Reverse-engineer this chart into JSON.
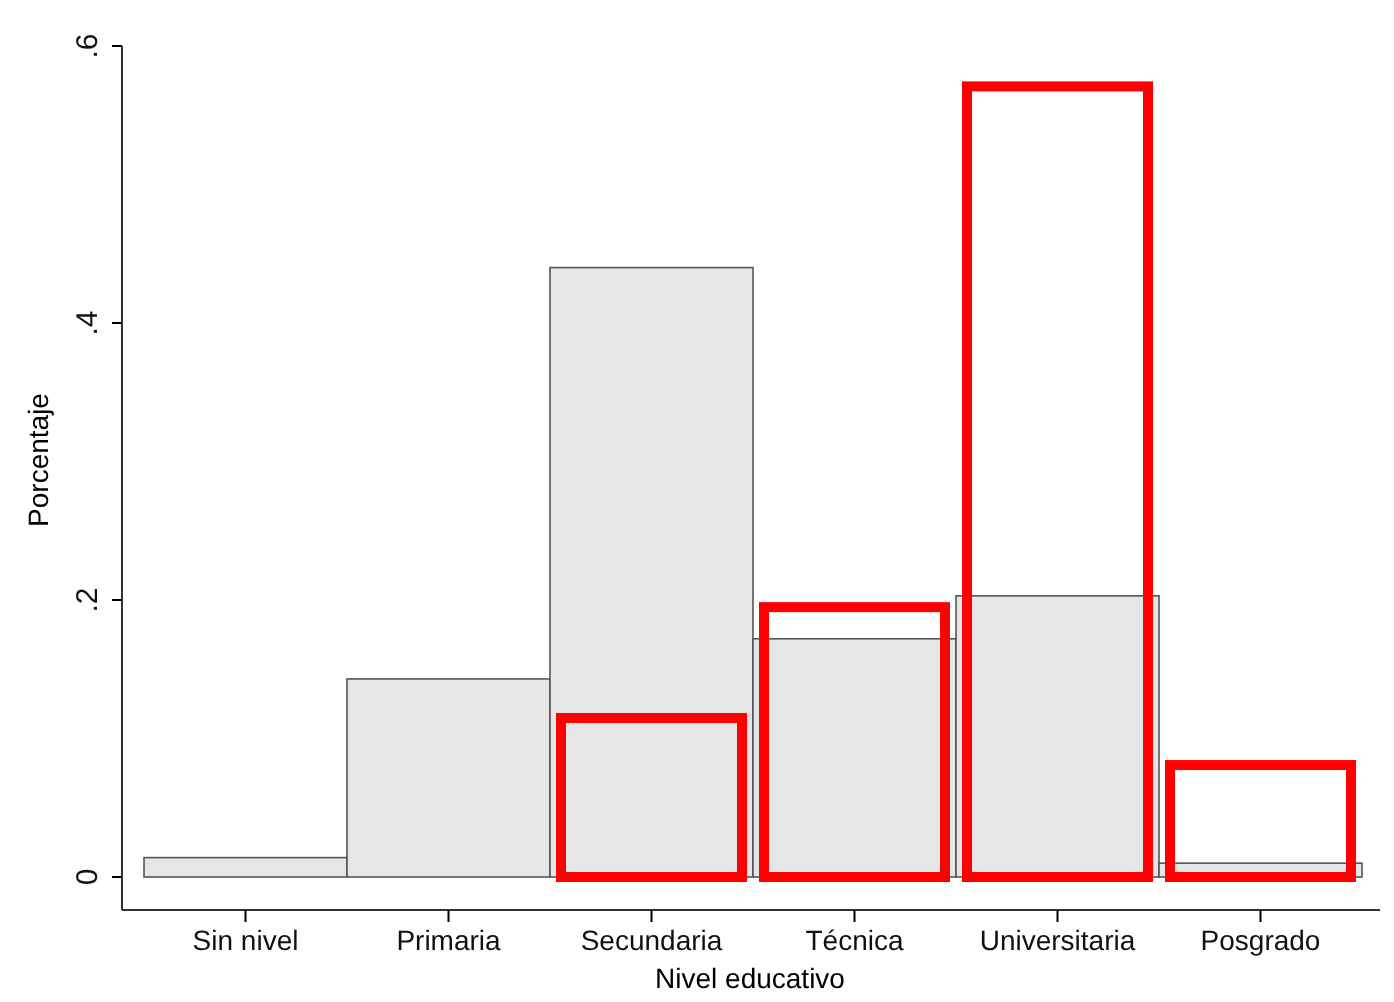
{
  "chart_data": {
    "type": "bar",
    "xlabel": "Nivel educativo",
    "ylabel": "Porcentaje",
    "categories": [
      "Sin nivel",
      "Primaria",
      "Secundaria",
      "Técnica",
      "Universitaria",
      "Posgrado"
    ],
    "series": [
      {
        "color": "#e6e6e6",
        "values": [
          0.014,
          0.143,
          0.44,
          0.172,
          0.203,
          0.01
        ]
      },
      {
        "color": "#ff0000",
        "values": [
          null,
          null,
          0.117,
          0.197,
          0.573,
          0.083
        ]
      }
    ],
    "ylim": [
      0,
      0.6
    ],
    "yticks": [
      {
        "value": 0,
        "label": "0"
      },
      {
        "value": 0.2,
        "label": ".2"
      },
      {
        "value": 0.4,
        "label": ".4"
      },
      {
        "value": 0.6,
        "label": ".6"
      }
    ],
    "grid": false
  }
}
